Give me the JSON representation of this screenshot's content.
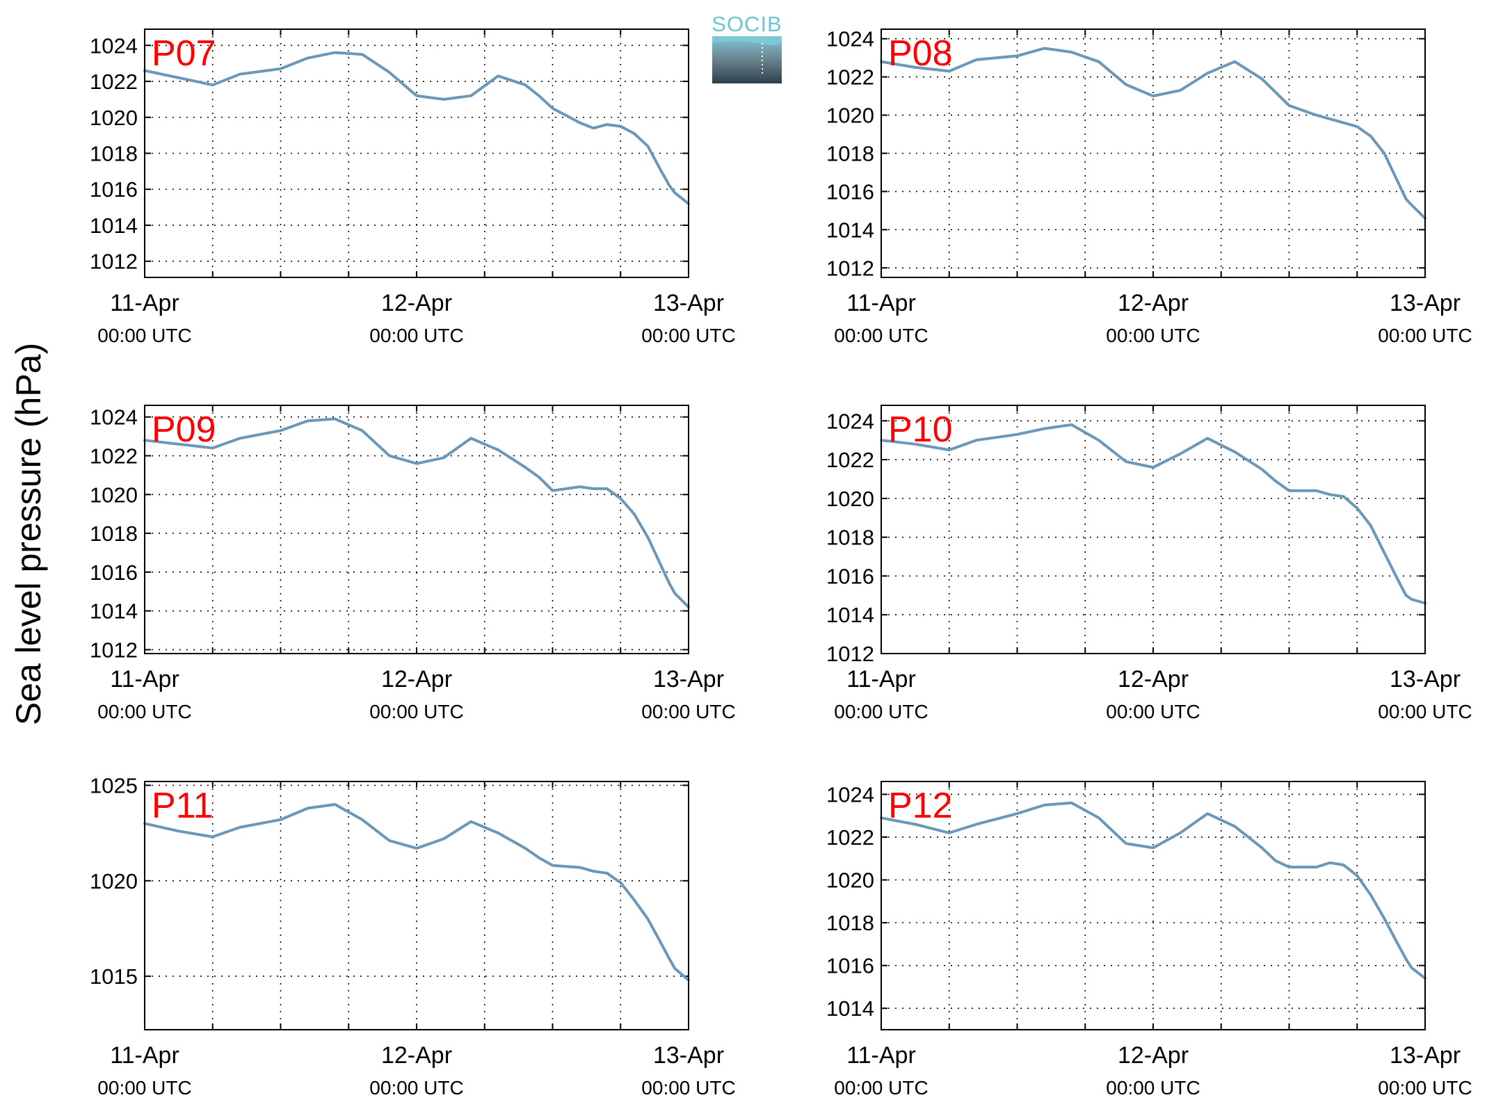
{
  "figure": {
    "ylabel": "Sea level pressure (hPa)",
    "logo_text": "SOCIB",
    "line_color": "#6b97b8",
    "label_color": "#ff0000"
  },
  "chart_data": [
    {
      "type": "line",
      "panel_label": "P07",
      "x": [
        0,
        0.125,
        0.25,
        0.35,
        0.5,
        0.6,
        0.7,
        0.8,
        0.9,
        1.0,
        1.1,
        1.2,
        1.3,
        1.4,
        1.45,
        1.5,
        1.6,
        1.65,
        1.7,
        1.75,
        1.8,
        1.85,
        1.9,
        1.93,
        1.95,
        2.0
      ],
      "y": [
        1022.6,
        1022.2,
        1021.8,
        1022.4,
        1022.7,
        1023.3,
        1023.6,
        1023.5,
        1022.5,
        1021.2,
        1021.0,
        1021.2,
        1022.3,
        1021.8,
        1021.2,
        1020.5,
        1019.7,
        1019.4,
        1019.6,
        1019.5,
        1019.1,
        1018.4,
        1017.0,
        1016.2,
        1015.8,
        1015.2
      ],
      "xtick_dates": [
        "11-Apr",
        "12-Apr",
        "13-Apr"
      ],
      "xtick_times": [
        "00:00 UTC",
        "00:00 UTC",
        "00:00 UTC"
      ],
      "yticks": [
        1012,
        1014,
        1016,
        1018,
        1020,
        1022,
        1024
      ],
      "ylim": [
        1011.1,
        1024.9
      ],
      "xlim": [
        0,
        2
      ],
      "grid": true
    },
    {
      "type": "line",
      "panel_label": "P08",
      "x": [
        0,
        0.125,
        0.25,
        0.35,
        0.5,
        0.6,
        0.7,
        0.8,
        0.9,
        1.0,
        1.1,
        1.2,
        1.3,
        1.4,
        1.45,
        1.5,
        1.6,
        1.65,
        1.7,
        1.75,
        1.8,
        1.85,
        1.9,
        1.93,
        1.95,
        2.0
      ],
      "y": [
        1022.8,
        1022.5,
        1022.3,
        1022.9,
        1023.1,
        1023.5,
        1023.3,
        1022.8,
        1021.6,
        1021.0,
        1021.3,
        1022.2,
        1022.8,
        1021.9,
        1021.2,
        1020.5,
        1020.0,
        1019.8,
        1019.6,
        1019.4,
        1018.9,
        1018.0,
        1016.5,
        1015.6,
        1015.3,
        1014.6
      ],
      "xtick_dates": [
        "11-Apr",
        "12-Apr",
        "13-Apr"
      ],
      "xtick_times": [
        "00:00 UTC",
        "00:00 UTC",
        "00:00 UTC"
      ],
      "yticks": [
        1012,
        1014,
        1016,
        1018,
        1020,
        1022,
        1024
      ],
      "ylim": [
        1011.5,
        1024.5
      ],
      "xlim": [
        0,
        2
      ],
      "grid": true
    },
    {
      "type": "line",
      "panel_label": "P09",
      "x": [
        0,
        0.125,
        0.25,
        0.35,
        0.5,
        0.6,
        0.7,
        0.8,
        0.9,
        1.0,
        1.1,
        1.2,
        1.3,
        1.4,
        1.45,
        1.5,
        1.6,
        1.65,
        1.7,
        1.75,
        1.8,
        1.85,
        1.9,
        1.93,
        1.95,
        2.0
      ],
      "y": [
        1022.8,
        1022.6,
        1022.4,
        1022.9,
        1023.3,
        1023.8,
        1023.9,
        1023.3,
        1022.0,
        1021.6,
        1021.9,
        1022.9,
        1022.3,
        1021.4,
        1020.9,
        1020.2,
        1020.4,
        1020.3,
        1020.3,
        1019.8,
        1019.0,
        1017.8,
        1016.3,
        1015.4,
        1014.9,
        1014.2
      ],
      "xtick_dates": [
        "11-Apr",
        "12-Apr",
        "13-Apr"
      ],
      "xtick_times": [
        "00:00 UTC",
        "00:00 UTC",
        "00:00 UTC"
      ],
      "yticks": [
        1012,
        1014,
        1016,
        1018,
        1020,
        1022,
        1024
      ],
      "ylim": [
        1011.8,
        1024.6
      ],
      "xlim": [
        0,
        2
      ],
      "grid": true
    },
    {
      "type": "line",
      "panel_label": "P10",
      "x": [
        0,
        0.125,
        0.25,
        0.35,
        0.5,
        0.6,
        0.7,
        0.8,
        0.9,
        1.0,
        1.1,
        1.2,
        1.3,
        1.4,
        1.45,
        1.5,
        1.6,
        1.65,
        1.7,
        1.75,
        1.8,
        1.85,
        1.9,
        1.93,
        1.95,
        2.0
      ],
      "y": [
        1023.0,
        1022.8,
        1022.5,
        1023.0,
        1023.3,
        1023.6,
        1023.8,
        1023.0,
        1021.9,
        1021.6,
        1022.3,
        1023.1,
        1022.4,
        1021.5,
        1020.9,
        1020.4,
        1020.4,
        1020.2,
        1020.1,
        1019.5,
        1018.6,
        1017.2,
        1015.8,
        1015.0,
        1014.8,
        1014.6
      ],
      "xtick_dates": [
        "11-Apr",
        "12-Apr",
        "13-Apr"
      ],
      "xtick_times": [
        "00:00 UTC",
        "00:00 UTC",
        "00:00 UTC"
      ],
      "yticks": [
        1012,
        1014,
        1016,
        1018,
        1020,
        1022,
        1024
      ],
      "ylim": [
        1012,
        1024.8
      ],
      "xlim": [
        0,
        2
      ],
      "grid": true
    },
    {
      "type": "line",
      "panel_label": "P11",
      "x": [
        0,
        0.125,
        0.25,
        0.35,
        0.5,
        0.6,
        0.7,
        0.8,
        0.9,
        1.0,
        1.1,
        1.2,
        1.3,
        1.4,
        1.45,
        1.5,
        1.6,
        1.65,
        1.7,
        1.75,
        1.8,
        1.85,
        1.9,
        1.93,
        1.95,
        2.0
      ],
      "y": [
        1023.0,
        1022.6,
        1022.3,
        1022.8,
        1023.2,
        1023.8,
        1024.0,
        1023.2,
        1022.1,
        1021.7,
        1022.2,
        1023.1,
        1022.5,
        1021.7,
        1021.2,
        1020.8,
        1020.7,
        1020.5,
        1020.4,
        1019.9,
        1019.0,
        1018.0,
        1016.7,
        1015.9,
        1015.4,
        1014.8
      ],
      "xtick_dates": [
        "11-Apr",
        "12-Apr",
        "13-Apr"
      ],
      "xtick_times": [
        "00:00 UTC",
        "00:00 UTC",
        "00:00 UTC"
      ],
      "yticks": [
        1015,
        1020,
        1025
      ],
      "ylim": [
        1012.2,
        1025.2
      ],
      "xlim": [
        0,
        2
      ],
      "grid": true
    },
    {
      "type": "line",
      "panel_label": "P12",
      "x": [
        0,
        0.125,
        0.25,
        0.35,
        0.5,
        0.6,
        0.7,
        0.8,
        0.9,
        1.0,
        1.1,
        1.2,
        1.3,
        1.4,
        1.45,
        1.5,
        1.6,
        1.65,
        1.7,
        1.75,
        1.8,
        1.85,
        1.9,
        1.93,
        1.95,
        2.0
      ],
      "y": [
        1022.9,
        1022.6,
        1022.2,
        1022.6,
        1023.1,
        1023.5,
        1023.6,
        1022.9,
        1021.7,
        1021.5,
        1022.2,
        1023.1,
        1022.5,
        1021.5,
        1020.9,
        1020.6,
        1020.6,
        1020.8,
        1020.7,
        1020.2,
        1019.3,
        1018.2,
        1017.0,
        1016.3,
        1015.9,
        1015.4
      ],
      "xtick_dates": [
        "11-Apr",
        "12-Apr",
        "13-Apr"
      ],
      "xtick_times": [
        "00:00 UTC",
        "00:00 UTC",
        "00:00 UTC"
      ],
      "yticks": [
        1014,
        1016,
        1018,
        1020,
        1022,
        1024
      ],
      "ylim": [
        1013.0,
        1024.6
      ],
      "xlim": [
        0,
        2
      ],
      "grid": true
    }
  ]
}
